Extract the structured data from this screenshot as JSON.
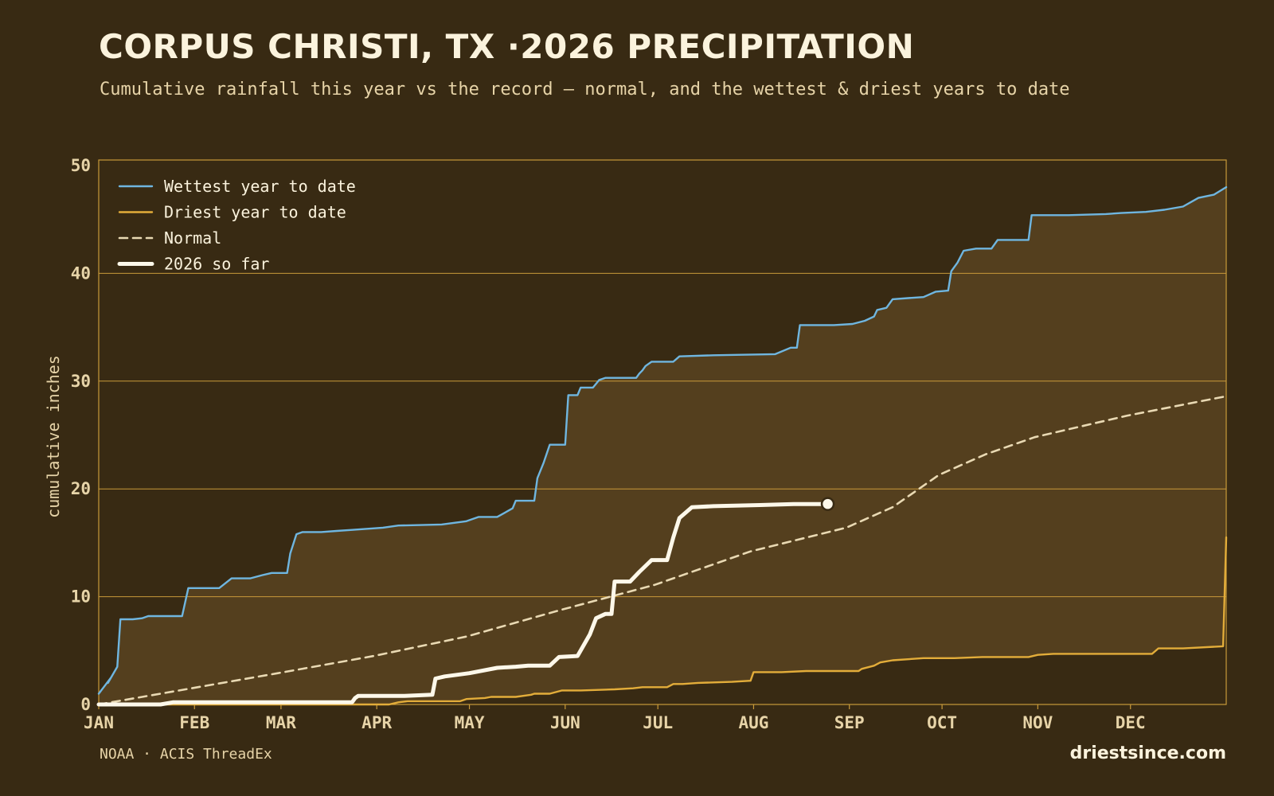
{
  "header": {
    "title": "CORPUS CHRISTI, TX ·2026 PRECIPITATION",
    "subtitle": "Cumulative rainfall this year vs the record — normal, and the wettest & driest years to date"
  },
  "footer": {
    "source": "NOAA · ACIS ThreadEx",
    "brand": "driestsince.com"
  },
  "colors": {
    "background": "#382a13",
    "band_fill": "#543f1e",
    "grid": "#c99a3a",
    "wettest": "#6fb6e0",
    "driest": "#e3ad3a",
    "normal": "#e9d9b3",
    "current": "#fdf8ea",
    "tick_text": "#e7d4a8"
  },
  "chart_data": {
    "type": "line",
    "ylabel": "cumulative inches",
    "ylim": [
      0,
      50
    ],
    "yticks": [
      "0",
      "10",
      "20",
      "30",
      "40",
      "50"
    ],
    "xlim": [
      1,
      366
    ],
    "month_ticks": [
      {
        "label": "JAN",
        "day": 1
      },
      {
        "label": "FEB",
        "day": 32
      },
      {
        "label": "MAR",
        "day": 60
      },
      {
        "label": "APR",
        "day": 91
      },
      {
        "label": "MAY",
        "day": 121
      },
      {
        "label": "JUN",
        "day": 152
      },
      {
        "label": "JUL",
        "day": 182
      },
      {
        "label": "AUG",
        "day": 213
      },
      {
        "label": "SEP",
        "day": 244
      },
      {
        "label": "OCT",
        "day": 274
      },
      {
        "label": "NOV",
        "day": 305
      },
      {
        "label": "DEC",
        "day": 335
      }
    ],
    "grid": true,
    "legend_position": "top-left",
    "band": "fill between driest and wettest year to date",
    "series": [
      {
        "name": "Wettest year to date",
        "color_key": "wettest",
        "style": "solid",
        "points": [
          [
            1,
            1
          ],
          [
            5,
            2.5
          ],
          [
            4,
            2.0
          ],
          [
            7,
            3.5
          ],
          [
            8,
            7.9
          ],
          [
            12,
            7.9
          ],
          [
            15,
            8.0
          ],
          [
            17,
            8.2
          ],
          [
            23,
            8.2
          ],
          [
            28,
            8.2
          ],
          [
            30,
            10.8
          ],
          [
            40,
            10.8
          ],
          [
            44,
            11.7
          ],
          [
            50,
            11.7
          ],
          [
            54,
            12.0
          ],
          [
            57,
            12.2
          ],
          [
            62,
            12.2
          ],
          [
            63,
            14.0
          ],
          [
            65,
            15.8
          ],
          [
            67,
            16.0
          ],
          [
            73,
            16.0
          ],
          [
            78,
            16.1
          ],
          [
            83,
            16.2
          ],
          [
            88,
            16.3
          ],
          [
            93,
            16.4
          ],
          [
            98,
            16.6
          ],
          [
            112,
            16.7
          ],
          [
            120,
            17.0
          ],
          [
            124,
            17.4
          ],
          [
            130,
            17.4
          ],
          [
            135,
            18.2
          ],
          [
            136,
            18.9
          ],
          [
            142,
            18.9
          ],
          [
            143,
            21.0
          ],
          [
            145,
            22.4
          ],
          [
            147,
            24.1
          ],
          [
            152,
            24.1
          ],
          [
            153,
            28.7
          ],
          [
            156,
            28.7
          ],
          [
            157,
            29.4
          ],
          [
            161,
            29.4
          ],
          [
            163,
            30.1
          ],
          [
            165,
            30.3
          ],
          [
            175,
            30.3
          ],
          [
            176,
            30.7
          ],
          [
            177,
            31.0
          ],
          [
            178,
            31.4
          ],
          [
            180,
            31.8
          ],
          [
            187,
            31.8
          ],
          [
            189,
            32.3
          ],
          [
            200,
            32.4
          ],
          [
            220,
            32.5
          ],
          [
            225,
            33.1
          ],
          [
            227,
            33.1
          ],
          [
            228,
            35.2
          ],
          [
            239,
            35.2
          ],
          [
            245,
            35.3
          ],
          [
            249,
            35.6
          ],
          [
            252,
            36.0
          ],
          [
            253,
            36.6
          ],
          [
            256,
            36.8
          ],
          [
            258,
            37.6
          ],
          [
            263,
            37.7
          ],
          [
            268,
            37.8
          ],
          [
            272,
            38.3
          ],
          [
            276,
            38.4
          ],
          [
            277,
            40.2
          ],
          [
            279,
            41.0
          ],
          [
            281,
            42.1
          ],
          [
            285,
            42.3
          ],
          [
            290,
            42.3
          ],
          [
            292,
            43.1
          ],
          [
            299,
            43.1
          ],
          [
            302,
            43.1
          ],
          [
            303,
            45.4
          ],
          [
            315,
            45.4
          ],
          [
            327,
            45.5
          ],
          [
            332,
            45.6
          ],
          [
            340,
            45.7
          ],
          [
            346,
            45.9
          ],
          [
            352,
            46.2
          ],
          [
            357,
            47.0
          ],
          [
            362,
            47.3
          ],
          [
            366,
            48.0
          ]
        ]
      },
      {
        "name": "Driest year to date",
        "color_key": "driest",
        "style": "solid",
        "points": [
          [
            1,
            0
          ],
          [
            95,
            0
          ],
          [
            98,
            0.2
          ],
          [
            101,
            0.3
          ],
          [
            118,
            0.3
          ],
          [
            120,
            0.5
          ],
          [
            126,
            0.6
          ],
          [
            128,
            0.7
          ],
          [
            136,
            0.7
          ],
          [
            141,
            0.9
          ],
          [
            142,
            1.0
          ],
          [
            147,
            1.0
          ],
          [
            151,
            1.3
          ],
          [
            157,
            1.3
          ],
          [
            168,
            1.4
          ],
          [
            174,
            1.5
          ],
          [
            177,
            1.6
          ],
          [
            185,
            1.6
          ],
          [
            187,
            1.9
          ],
          [
            190,
            1.9
          ],
          [
            195,
            2.0
          ],
          [
            206,
            2.1
          ],
          [
            212,
            2.2
          ],
          [
            213,
            3.0
          ],
          [
            222,
            3.0
          ],
          [
            230,
            3.1
          ],
          [
            247,
            3.1
          ],
          [
            248,
            3.3
          ],
          [
            252,
            3.6
          ],
          [
            254,
            3.9
          ],
          [
            258,
            4.1
          ],
          [
            268,
            4.3
          ],
          [
            278,
            4.3
          ],
          [
            287,
            4.4
          ],
          [
            302,
            4.4
          ],
          [
            305,
            4.6
          ],
          [
            310,
            4.7
          ],
          [
            322,
            4.7
          ],
          [
            342,
            4.7
          ],
          [
            344,
            5.2
          ],
          [
            352,
            5.2
          ],
          [
            365,
            5.4
          ],
          [
            366,
            15.5
          ]
        ]
      },
      {
        "name": "Normal",
        "color_key": "normal",
        "style": "dashed",
        "points": [
          [
            1,
            0
          ],
          [
            31,
            1.5
          ],
          [
            59,
            2.9
          ],
          [
            90,
            4.5
          ],
          [
            120,
            6.3
          ],
          [
            151,
            8.8
          ],
          [
            181,
            11.1
          ],
          [
            212,
            14.2
          ],
          [
            243,
            16.4
          ],
          [
            258,
            18.3
          ],
          [
            273,
            21.3
          ],
          [
            288,
            23.2
          ],
          [
            304,
            24.8
          ],
          [
            334,
            26.8
          ],
          [
            366,
            28.6
          ]
        ]
      },
      {
        "name": "2026 so far",
        "color_key": "current",
        "style": "thick",
        "points": [
          [
            1,
            0
          ],
          [
            21,
            0
          ],
          [
            25,
            0.2
          ],
          [
            42,
            0.2
          ],
          [
            45,
            0.2
          ],
          [
            65,
            0.2
          ],
          [
            72,
            0.2
          ],
          [
            83,
            0.2
          ],
          [
            84,
            0.6
          ],
          [
            85,
            0.8
          ],
          [
            100,
            0.8
          ],
          [
            109,
            0.9
          ],
          [
            110,
            2.4
          ],
          [
            113,
            2.6
          ],
          [
            121,
            2.9
          ],
          [
            130,
            3.4
          ],
          [
            136,
            3.5
          ],
          [
            140,
            3.6
          ],
          [
            147,
            3.6
          ],
          [
            150,
            4.4
          ],
          [
            156,
            4.5
          ],
          [
            160,
            6.5
          ],
          [
            162,
            8.0
          ],
          [
            165,
            8.4
          ],
          [
            167,
            8.4
          ],
          [
            168,
            11.4
          ],
          [
            173,
            11.4
          ],
          [
            176,
            12.3
          ],
          [
            180,
            13.4
          ],
          [
            185,
            13.4
          ],
          [
            187,
            15.5
          ],
          [
            189,
            17.3
          ],
          [
            193,
            18.3
          ],
          [
            200,
            18.4
          ],
          [
            215,
            18.5
          ],
          [
            226,
            18.6
          ],
          [
            237,
            18.6
          ]
        ]
      }
    ],
    "current_marker": {
      "series": "2026 so far",
      "x": 237,
      "y": 18.6
    }
  }
}
